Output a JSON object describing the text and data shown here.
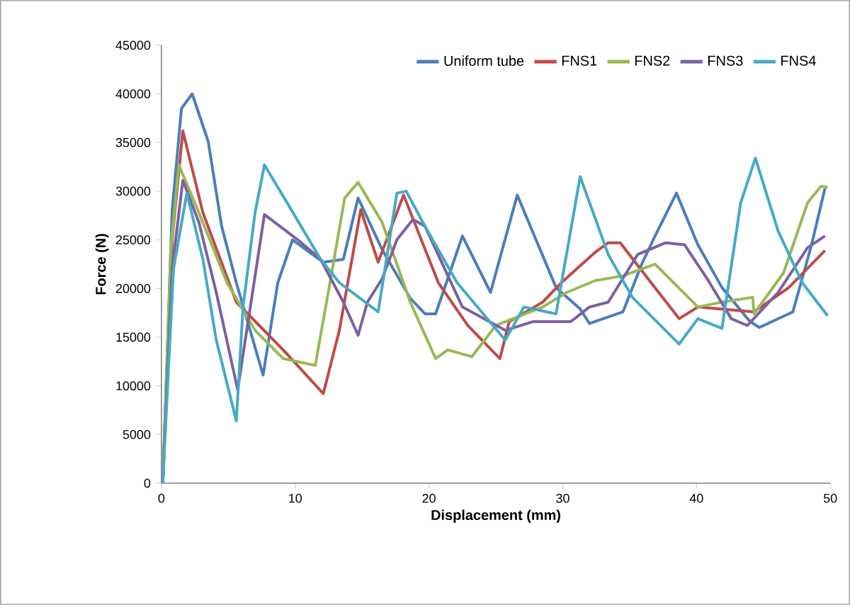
{
  "chart_data": {
    "type": "line",
    "xlabel": "Displacement (mm)",
    "ylabel": "Force (N)",
    "xlim": [
      0,
      50
    ],
    "ylim": [
      0,
      45000
    ],
    "xticks": [
      0,
      10,
      20,
      30,
      40,
      50
    ],
    "yticks": [
      0,
      5000,
      10000,
      15000,
      20000,
      25000,
      30000,
      35000,
      40000,
      45000
    ],
    "legend": "top right",
    "line_style": "solid",
    "series": [
      {
        "name": "Uniform tube",
        "color": "#4a7ebb",
        "x": [
          0.1,
          0.8,
          1.5,
          2.3,
          3.5,
          4.5,
          5.6,
          7.6,
          8.7,
          9.8,
          12.1,
          13.6,
          14.7,
          16.5,
          18.6,
          19.7,
          20.5,
          22.5,
          24.6,
          26.6,
          29.5,
          31.3,
          32.0,
          34.5,
          35.9,
          36.9,
          38.5,
          40.1,
          41.9,
          44.0,
          44.7,
          47.2,
          48.6,
          49.6
        ],
        "values": [
          0,
          28000,
          38500,
          40000,
          35100,
          26400,
          20600,
          11100,
          20600,
          25000,
          22700,
          23000,
          29300,
          24000,
          19000,
          17400,
          17400,
          25400,
          19600,
          29600,
          20100,
          17900,
          16400,
          17600,
          22500,
          25400,
          29800,
          24500,
          20100,
          16600,
          16000,
          17600,
          24500,
          30300
        ]
      },
      {
        "name": "FNS1",
        "color": "#be4b48",
        "x": [
          0.1,
          0.8,
          1.6,
          3.1,
          5.6,
          9.1,
          12.1,
          13.3,
          14.9,
          16.2,
          18.1,
          20.7,
          22.9,
          25.3,
          26.0,
          28.5,
          29.9,
          32.4,
          33.4,
          34.3,
          36.6,
          38.7,
          40.1,
          44.3,
          46.9,
          49.6
        ],
        "values": [
          0,
          25000,
          36200,
          27800,
          18600,
          13700,
          9200,
          15700,
          28100,
          22700,
          29600,
          20600,
          16200,
          12800,
          16600,
          18600,
          20600,
          23700,
          24700,
          24700,
          20600,
          16900,
          18100,
          17600,
          20100,
          23900
        ]
      },
      {
        "name": "FNS2",
        "color": "#98b954",
        "x": [
          0.1,
          0.7,
          1.3,
          2.8,
          4.9,
          7.0,
          9.1,
          11.5,
          12.6,
          13.7,
          14.7,
          16.5,
          18.6,
          20.5,
          21.4,
          23.2,
          25.0,
          28.5,
          30.3,
          32.4,
          34.5,
          36.9,
          40.1,
          41.9,
          44.2,
          44.3,
          46.5,
          48.3,
          49.3,
          49.8
        ],
        "values": [
          0,
          24000,
          32700,
          27800,
          20600,
          15700,
          12800,
          12100,
          20600,
          29300,
          30900,
          26800,
          18600,
          12800,
          13700,
          13000,
          16200,
          18100,
          19600,
          20800,
          21300,
          22500,
          18100,
          18600,
          19100,
          17400,
          21600,
          28800,
          30500,
          30400
        ]
      },
      {
        "name": "FNS3",
        "color": "#7d60a0",
        "x": [
          0.1,
          0.8,
          1.6,
          2.8,
          4.1,
          5.7,
          7.7,
          10.2,
          11.9,
          13.6,
          14.7,
          15.4,
          16.5,
          17.6,
          18.8,
          19.7,
          22.5,
          25.7,
          27.8,
          30.6,
          32.0,
          33.4,
          35.6,
          37.7,
          39.1,
          40.8,
          42.6,
          43.8,
          46.1,
          48.3,
          49.6
        ],
        "values": [
          0,
          22000,
          31100,
          26800,
          19600,
          9600,
          27600,
          25000,
          23000,
          18600,
          15200,
          18600,
          21000,
          25000,
          27100,
          26400,
          18100,
          15700,
          16600,
          16600,
          18100,
          18600,
          23500,
          24700,
          24500,
          21000,
          16900,
          16200,
          19600,
          24200,
          25400
        ]
      },
      {
        "name": "FNS4",
        "color": "#46aac5",
        "x": [
          0.1,
          0.9,
          1.9,
          3.1,
          4.1,
          5.6,
          6.1,
          7.0,
          7.7,
          9.4,
          11.9,
          13.3,
          16.2,
          17.6,
          18.3,
          19.7,
          22.1,
          25.7,
          27.1,
          29.5,
          31.3,
          33.4,
          35.2,
          38.7,
          40.1,
          41.9,
          43.3,
          44.4,
          46.1,
          47.9,
          49.8
        ],
        "values": [
          0,
          22000,
          29800,
          23000,
          14700,
          6400,
          18100,
          27800,
          32700,
          28800,
          23000,
          20600,
          17600,
          29800,
          30000,
          26400,
          20600,
          14700,
          18100,
          17400,
          31500,
          23500,
          19100,
          14300,
          16900,
          15900,
          28800,
          33400,
          25900,
          20600,
          17200
        ]
      }
    ]
  }
}
